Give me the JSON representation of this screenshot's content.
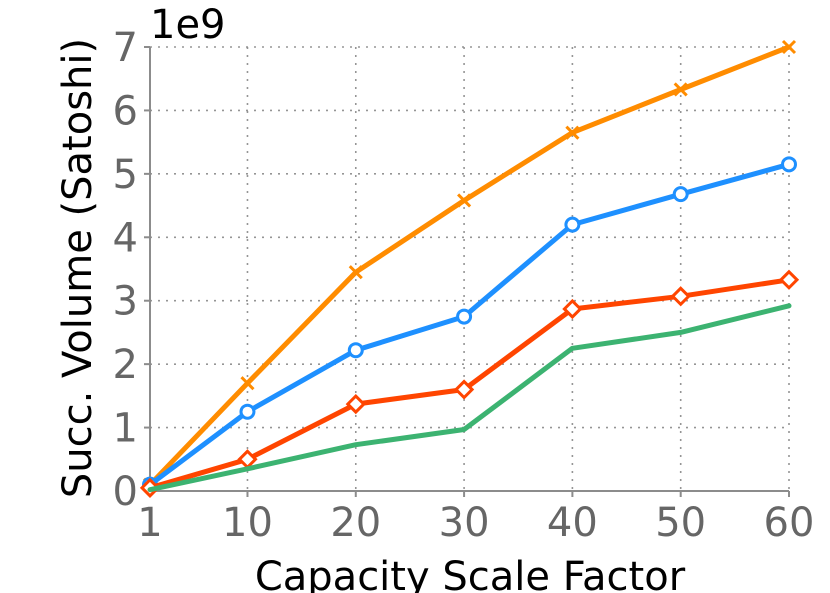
{
  "chart_data": {
    "type": "line",
    "x": [
      1,
      10,
      20,
      30,
      40,
      50,
      60
    ],
    "xticks": [
      "1",
      "10",
      "20",
      "30",
      "40",
      "50",
      "60"
    ],
    "xlabel": "Capacity Scale Factor",
    "ylabel": "Succ. Volume (Satoshi)",
    "yticks": [
      "0",
      "1",
      "2",
      "3",
      "4",
      "5",
      "6",
      "7"
    ],
    "scale_label": "1e9",
    "ylim": [
      0,
      7
    ],
    "xlim": [
      1,
      60
    ],
    "grid": true,
    "series": [
      {
        "color": "#ff8c00",
        "marker": "x",
        "values": [
          0.1,
          1.7,
          3.45,
          4.58,
          5.65,
          6.33,
          7.0
        ]
      },
      {
        "color": "#1e90ff",
        "marker": "circle",
        "values": [
          0.1,
          1.25,
          2.22,
          2.75,
          4.2,
          4.68,
          5.15
        ]
      },
      {
        "color": "#ff4500",
        "marker": "diamond",
        "values": [
          0.05,
          0.5,
          1.37,
          1.6,
          2.87,
          3.07,
          3.33
        ]
      },
      {
        "color": "#3cb371",
        "marker": "none",
        "values": [
          0.02,
          0.35,
          0.73,
          0.97,
          2.25,
          2.5,
          2.92
        ]
      }
    ]
  }
}
